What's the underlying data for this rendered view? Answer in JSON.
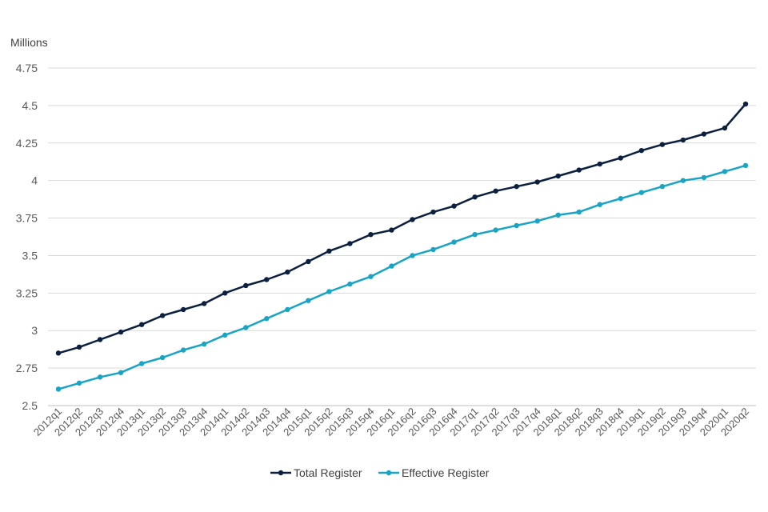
{
  "chart_data": {
    "type": "line",
    "ylabel": "Millions",
    "xlabel": "",
    "ylim": [
      2.5,
      4.75
    ],
    "yticks": [
      2.5,
      2.75,
      3,
      3.25,
      3.5,
      3.75,
      4,
      4.25,
      4.5,
      4.75
    ],
    "ytick_labels": [
      "2.5",
      "2.75",
      "3",
      "3.25",
      "3.5",
      "3.75",
      "4",
      "4.25",
      "4.5",
      "4.75"
    ],
    "grid": true,
    "legend_position": "bottom",
    "categories": [
      "2012q1",
      "2012q2",
      "2012q3",
      "2012q4",
      "2013q1",
      "2013q2",
      "2013q3",
      "2013q4",
      "2014q1",
      "2014q2",
      "2014q3",
      "2014q4",
      "2015q1",
      "2015q2",
      "2015q3",
      "2015q4",
      "2016q1",
      "2016q2",
      "2016q3",
      "2016q4",
      "2017q1",
      "2017q2",
      "2017q3",
      "2017q4",
      "2018q1",
      "2018q2",
      "2018q3",
      "2018q4",
      "2019q1",
      "2019q2",
      "2019q3",
      "2019q4",
      "2020q1",
      "2020q2"
    ],
    "series": [
      {
        "name": "Total Register",
        "color": "#0b1f3f",
        "values": [
          2.85,
          2.89,
          2.94,
          2.99,
          3.04,
          3.1,
          3.14,
          3.18,
          3.25,
          3.3,
          3.34,
          3.39,
          3.46,
          3.53,
          3.58,
          3.64,
          3.67,
          3.74,
          3.79,
          3.83,
          3.89,
          3.93,
          3.96,
          3.99,
          4.03,
          4.07,
          4.11,
          4.15,
          4.2,
          4.24,
          4.27,
          4.31,
          4.35,
          4.51
        ]
      },
      {
        "name": "Effective Register",
        "color": "#18a4c4",
        "values": [
          2.61,
          2.65,
          2.69,
          2.72,
          2.78,
          2.82,
          2.87,
          2.91,
          2.97,
          3.02,
          3.08,
          3.14,
          3.2,
          3.26,
          3.31,
          3.36,
          3.43,
          3.5,
          3.54,
          3.59,
          3.64,
          3.67,
          3.7,
          3.73,
          3.77,
          3.79,
          3.84,
          3.88,
          3.92,
          3.96,
          4.0,
          4.02,
          4.06,
          4.1
        ]
      }
    ]
  }
}
